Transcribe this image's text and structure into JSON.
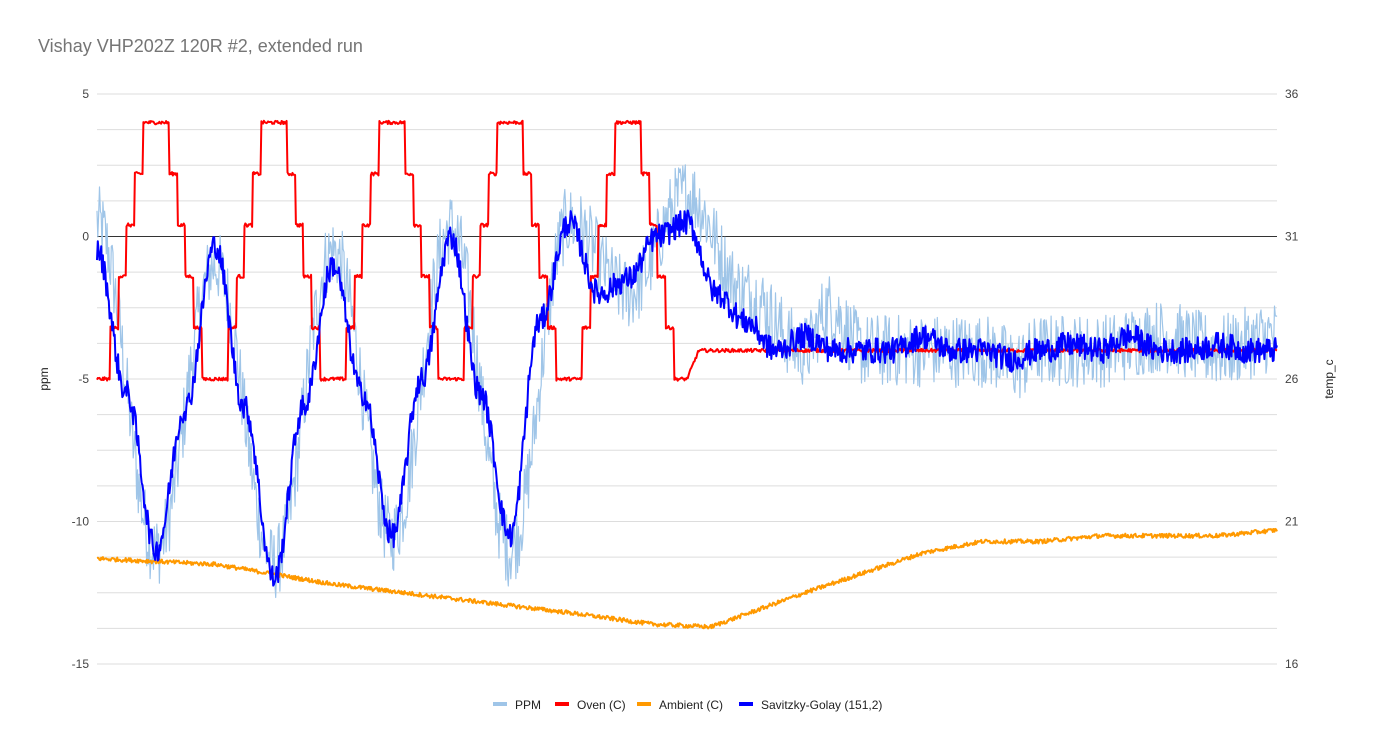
{
  "chart_data": {
    "type": "line",
    "title": "Vishay VHP202Z 120R #2, extended run",
    "y_left": {
      "label": "ppm",
      "ticks": [
        "5",
        "0",
        "-5",
        "-10",
        "-15"
      ],
      "range": [
        -15,
        5
      ]
    },
    "y_right": {
      "label": "temp_c",
      "ticks": [
        "36",
        "31",
        "26",
        "21",
        "16"
      ],
      "range": [
        16,
        36
      ]
    },
    "x_range": [
      0,
      1000
    ],
    "grid": true,
    "legend_position": "bottom",
    "series": [
      {
        "name": "PPM",
        "axis": "left",
        "color": "#9fc5e8",
        "x": [
          0,
          50,
          100,
          150,
          200,
          250,
          300,
          350,
          400,
          450,
          500,
          550,
          600,
          620,
          650,
          700,
          750,
          780,
          800,
          850,
          900,
          950,
          1000
        ],
        "y": [
          0.5,
          -11,
          -1,
          -11.5,
          -0.5,
          -10.5,
          0.3,
          -11,
          0.5,
          -2,
          1.5,
          -2,
          -4,
          -2.5,
          -4,
          -4,
          -4,
          -4.5,
          -4,
          -4,
          -3.5,
          -4,
          -3.5
        ]
      },
      {
        "name": "Oven (C)",
        "axis": "right",
        "color": "#ff0000",
        "x": [
          0,
          50,
          100,
          150,
          200,
          250,
          300,
          350,
          400,
          450,
          500,
          510,
          1000
        ],
        "y": [
          26,
          35,
          26,
          35,
          26,
          35,
          26,
          35,
          26,
          35,
          26,
          27,
          27
        ]
      },
      {
        "name": "Ambient (C)",
        "axis": "right",
        "color": "#ff9900",
        "x": [
          0,
          100,
          200,
          300,
          400,
          470,
          520,
          560,
          600,
          650,
          700,
          750,
          800,
          850,
          900,
          950,
          1000
        ],
        "y": [
          19.7,
          19.5,
          18.8,
          18.3,
          17.8,
          17.4,
          17.3,
          17.9,
          18.5,
          19.2,
          19.9,
          20.3,
          20.3,
          20.5,
          20.5,
          20.5,
          20.7
        ]
      },
      {
        "name": "Savitzky-Golay (151,2)",
        "axis": "left",
        "color": "#0000ff",
        "x": [
          0,
          25,
          50,
          75,
          100,
          125,
          150,
          175,
          200,
          225,
          250,
          275,
          300,
          325,
          350,
          375,
          400,
          425,
          450,
          475,
          500,
          525,
          550,
          575,
          600,
          625,
          650,
          675,
          700,
          725,
          750,
          775,
          800,
          825,
          850,
          875,
          900,
          925,
          950,
          975,
          1000
        ],
        "y": [
          -0.5,
          -5.5,
          -11,
          -6,
          -0.3,
          -6,
          -12,
          -6,
          -1,
          -5.5,
          -10.5,
          -5,
          0,
          -5.5,
          -10.5,
          -3,
          0.5,
          -2,
          -1.5,
          0,
          0.5,
          -2,
          -3,
          -4,
          -3.5,
          -4,
          -4,
          -4,
          -3.5,
          -4,
          -4,
          -4.3,
          -4,
          -3.8,
          -4,
          -3.5,
          -4,
          -4,
          -3.8,
          -4,
          -4
        ]
      }
    ],
    "legend": [
      "PPM",
      "Oven (C)",
      "Ambient (C)",
      "Savitzky-Golay (151,2)"
    ]
  }
}
